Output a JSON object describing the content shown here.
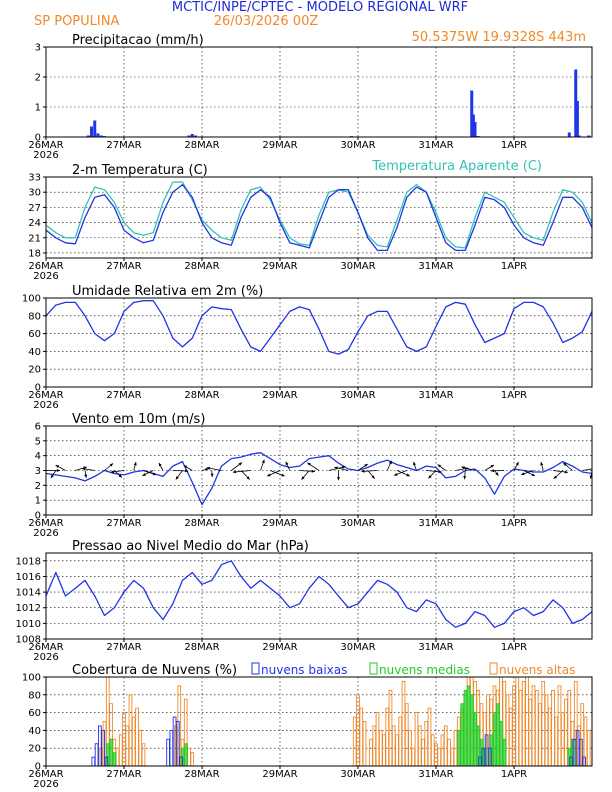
{
  "header": {
    "title": "MCTIC/INPE/CPTEC - MODELO REGIONAL WRF",
    "location": "SP POPULINA",
    "run": "26/03/2026 00Z",
    "coords": "50.5375W 19.9328S 443m"
  },
  "colors": {
    "title": "#1f2ad6",
    "orange": "#f0892a",
    "blue": "#1f35e6",
    "cyan": "#35c2b4",
    "green": "#22cc22",
    "black": "#000000"
  },
  "x_axis": {
    "hours_total": 168,
    "ticks": [
      {
        "h": 0,
        "label": "26MAR",
        "sub": "2026"
      },
      {
        "h": 24,
        "label": "27MAR"
      },
      {
        "h": 48,
        "label": "28MAR"
      },
      {
        "h": 72,
        "label": "29MAR"
      },
      {
        "h": 96,
        "label": "30MAR"
      },
      {
        "h": 120,
        "label": "31MAR"
      },
      {
        "h": 144,
        "label": "1APR"
      }
    ]
  },
  "chart_data": [
    {
      "type": "bar",
      "title": "Precipitacao (mm/h)",
      "ylim": [
        0,
        3
      ],
      "yticks": [
        0,
        1,
        2,
        3
      ],
      "series": [
        {
          "name": "Precipitacao",
          "x": [
            13,
            14,
            15,
            16,
            17,
            18,
            44,
            45,
            46,
            94,
            131,
            131.5,
            132,
            132.5,
            133,
            161,
            163,
            163.5,
            164,
            167
          ],
          "values": [
            0.05,
            0.35,
            0.55,
            0.12,
            0.05,
            0.03,
            0.05,
            0.1,
            0.05,
            0.03,
            1.55,
            0.75,
            0.5,
            0.03,
            0.03,
            0.15,
            2.25,
            1.2,
            0.05,
            0.05
          ]
        }
      ]
    },
    {
      "type": "line",
      "title": "2-m Temperatura (C)",
      "legend": "Temperatura Aparente (C)",
      "ylim": [
        17,
        33
      ],
      "yticks": [
        18,
        21,
        24,
        27,
        30,
        33
      ],
      "series": [
        {
          "name": "2-m Temperatura",
          "x": [
            0,
            3,
            6,
            9,
            12,
            15,
            18,
            21,
            24,
            27,
            30,
            33,
            36,
            39,
            42,
            45,
            48,
            51,
            54,
            57,
            60,
            63,
            66,
            69,
            72,
            75,
            78,
            81,
            84,
            87,
            90,
            93,
            96,
            99,
            102,
            105,
            108,
            111,
            114,
            117,
            120,
            123,
            126,
            129,
            132,
            135,
            138,
            141,
            144,
            147,
            150,
            153,
            156,
            159,
            162,
            165,
            168
          ],
          "values": [
            22.5,
            21.0,
            20.0,
            19.8,
            25.0,
            29.0,
            29.5,
            27.0,
            22.5,
            21.0,
            20.0,
            20.5,
            26.0,
            30.0,
            31.5,
            29.0,
            24.0,
            21.0,
            20.0,
            19.5,
            25.0,
            29.0,
            30.5,
            29.0,
            24.0,
            20.0,
            19.5,
            19.0,
            24.0,
            29.0,
            30.5,
            30.5,
            26.0,
            21.0,
            18.5,
            18.5,
            23.0,
            29.0,
            31.0,
            30.0,
            25.0,
            20.0,
            18.5,
            18.5,
            23.5,
            29.0,
            28.5,
            27.0,
            23.5,
            21.0,
            20.0,
            19.5,
            24.0,
            29.0,
            29.0,
            27.0,
            23.0
          ]
        },
        {
          "name": "Temperatura Aparente",
          "x": [
            0,
            3,
            6,
            9,
            12,
            15,
            18,
            21,
            24,
            27,
            30,
            33,
            36,
            39,
            42,
            45,
            48,
            51,
            54,
            57,
            60,
            63,
            66,
            69,
            72,
            75,
            78,
            81,
            84,
            87,
            90,
            93,
            96,
            99,
            102,
            105,
            108,
            111,
            114,
            117,
            120,
            123,
            126,
            129,
            132,
            135,
            138,
            141,
            144,
            147,
            150,
            153,
            156,
            159,
            162,
            165,
            168
          ],
          "values": [
            23.5,
            22.0,
            21.0,
            21.0,
            27.0,
            31.0,
            30.5,
            28.0,
            24.0,
            22.0,
            21.5,
            22.0,
            28.0,
            32.0,
            32.0,
            28.5,
            24.5,
            22.5,
            21.0,
            20.5,
            26.5,
            30.5,
            31.0,
            28.5,
            24.5,
            21.0,
            19.8,
            19.5,
            25.5,
            30.0,
            30.5,
            30.0,
            26.0,
            21.5,
            19.5,
            19.2,
            24.5,
            30.0,
            31.5,
            30.0,
            26.0,
            21.0,
            19.2,
            19.0,
            25.0,
            30.0,
            29.0,
            28.0,
            25.0,
            22.0,
            21.0,
            20.5,
            26.0,
            30.5,
            30.0,
            28.0,
            24.0
          ]
        }
      ]
    },
    {
      "type": "line",
      "title": "Umidade Relativa em 2m (%)",
      "ylim": [
        0,
        100
      ],
      "yticks": [
        0,
        20,
        40,
        60,
        80,
        100
      ],
      "series": [
        {
          "name": "Umidade Relativa",
          "x": [
            0,
            3,
            6,
            9,
            12,
            15,
            18,
            21,
            24,
            27,
            30,
            33,
            36,
            39,
            42,
            45,
            48,
            51,
            54,
            57,
            60,
            63,
            66,
            69,
            72,
            75,
            78,
            81,
            84,
            87,
            90,
            93,
            96,
            99,
            102,
            105,
            108,
            111,
            114,
            117,
            120,
            123,
            126,
            129,
            132,
            135,
            138,
            141,
            144,
            147,
            150,
            153,
            156,
            159,
            162,
            165,
            168
          ],
          "values": [
            80,
            92,
            95,
            95,
            80,
            60,
            52,
            60,
            85,
            95,
            97,
            97,
            80,
            55,
            45,
            55,
            80,
            90,
            88,
            87,
            65,
            45,
            40,
            55,
            70,
            85,
            90,
            87,
            65,
            40,
            37,
            42,
            62,
            80,
            85,
            85,
            65,
            45,
            40,
            45,
            68,
            90,
            95,
            93,
            70,
            50,
            55,
            60,
            88,
            95,
            95,
            90,
            72,
            50,
            55,
            62,
            85
          ]
        }
      ]
    },
    {
      "type": "line",
      "title": "Vento em 10m (m/s)",
      "ylim": [
        0,
        6
      ],
      "yticks": [
        0,
        1,
        2,
        3,
        4,
        5,
        6
      ],
      "series": [
        {
          "name": "Vento",
          "x": [
            0,
            3,
            6,
            9,
            12,
            15,
            18,
            21,
            24,
            27,
            30,
            33,
            36,
            39,
            42,
            45,
            48,
            51,
            54,
            57,
            60,
            63,
            66,
            69,
            72,
            75,
            78,
            81,
            84,
            87,
            90,
            93,
            96,
            99,
            102,
            105,
            108,
            111,
            114,
            117,
            120,
            123,
            126,
            129,
            132,
            135,
            138,
            141,
            144,
            147,
            150,
            153,
            156,
            159,
            162,
            165,
            168
          ],
          "values": [
            2.8,
            2.7,
            2.6,
            2.5,
            2.3,
            2.6,
            3.0,
            2.8,
            2.7,
            2.9,
            3.0,
            2.8,
            2.6,
            3.3,
            3.6,
            2.2,
            0.7,
            1.8,
            3.3,
            3.8,
            3.9,
            4.1,
            4.2,
            3.8,
            3.4,
            3.2,
            3.3,
            3.8,
            3.9,
            4.0,
            3.5,
            3.1,
            3.0,
            3.2,
            3.5,
            3.7,
            3.4,
            3.2,
            3.0,
            3.3,
            3.2,
            2.5,
            2.6,
            3.0,
            3.1,
            2.5,
            1.4,
            2.6,
            3.1,
            3.0,
            2.9,
            2.9,
            3.2,
            3.6,
            3.3,
            2.9,
            2.8
          ]
        }
      ]
    },
    {
      "type": "line",
      "title": "Pressao ao Nivel Medio do Mar (hPa)",
      "ylim": [
        1008,
        1019
      ],
      "yticks": [
        1008,
        1010,
        1012,
        1014,
        1016,
        1018
      ],
      "series": [
        {
          "name": "Pressao",
          "x": [
            0,
            3,
            6,
            9,
            12,
            15,
            18,
            21,
            24,
            27,
            30,
            33,
            36,
            39,
            42,
            45,
            48,
            51,
            54,
            57,
            60,
            63,
            66,
            69,
            72,
            75,
            78,
            81,
            84,
            87,
            90,
            93,
            96,
            99,
            102,
            105,
            108,
            111,
            114,
            117,
            120,
            123,
            126,
            129,
            132,
            135,
            138,
            141,
            144,
            147,
            150,
            153,
            156,
            159,
            162,
            165,
            168
          ],
          "values": [
            1013.5,
            1016.5,
            1013.5,
            1014.5,
            1015.5,
            1013.5,
            1011.0,
            1012.0,
            1014.0,
            1015.5,
            1014.5,
            1012.0,
            1010.5,
            1012.5,
            1015.5,
            1016.5,
            1015.0,
            1015.5,
            1017.5,
            1018.0,
            1016.0,
            1014.5,
            1015.5,
            1014.5,
            1013.5,
            1012.0,
            1012.5,
            1014.5,
            1016.0,
            1015.0,
            1013.5,
            1012.0,
            1012.5,
            1014.0,
            1015.5,
            1015.0,
            1014.0,
            1012.0,
            1011.5,
            1013.0,
            1012.5,
            1010.5,
            1009.5,
            1010.0,
            1011.5,
            1011.0,
            1009.5,
            1010.0,
            1011.5,
            1012.0,
            1011.0,
            1011.5,
            1013.0,
            1012.0,
            1010.0,
            1010.5,
            1011.5
          ]
        }
      ]
    },
    {
      "type": "bar",
      "title": "Cobertura de Nuvens (%)",
      "ylim": [
        0,
        100
      ],
      "yticks": [
        0,
        20,
        40,
        60,
        80,
        100
      ],
      "legend": [
        "nuvens baixas",
        "nuvens medias",
        "nuvens altas"
      ],
      "series": [
        {
          "name": "nuvens baixas",
          "x": [
            15,
            16,
            17,
            18,
            19,
            38,
            39,
            40,
            41,
            42,
            134,
            135,
            136,
            137,
            162,
            163,
            164,
            165,
            166
          ],
          "values": [
            10,
            25,
            45,
            40,
            10,
            30,
            40,
            55,
            50,
            10,
            10,
            20,
            35,
            20,
            10,
            30,
            40,
            30,
            10
          ]
        },
        {
          "name": "nuvens medias",
          "x": [
            19,
            20,
            21,
            42,
            43,
            127,
            128,
            129,
            130,
            131,
            132,
            133,
            134,
            135,
            137,
            138,
            139,
            140,
            141,
            161,
            162
          ],
          "values": [
            25,
            30,
            15,
            20,
            25,
            40,
            70,
            85,
            90,
            80,
            60,
            45,
            30,
            20,
            35,
            60,
            70,
            50,
            30,
            20,
            30
          ]
        },
        {
          "name": "nuvens altas",
          "x": [
            17,
            18,
            19,
            20,
            21,
            22,
            23,
            24,
            25,
            26,
            27,
            28,
            29,
            30,
            40,
            41,
            42,
            43,
            44,
            45,
            95,
            96,
            97,
            98,
            100,
            101,
            102,
            103,
            104,
            105,
            106,
            107,
            108,
            109,
            110,
            111,
            112,
            113,
            114,
            115,
            116,
            117,
            118,
            119,
            120,
            121,
            122,
            123,
            124,
            125,
            126,
            127,
            128,
            129,
            130,
            131,
            132,
            133,
            134,
            135,
            136,
            137,
            138,
            139,
            140,
            141,
            142,
            143,
            144,
            145,
            146,
            147,
            148,
            149,
            150,
            151,
            152,
            153,
            154,
            155,
            156,
            157,
            158,
            159,
            160,
            161,
            162,
            163,
            164,
            165,
            166,
            167
          ],
          "values": [
            20,
            50,
            100,
            70,
            30,
            20,
            35,
            60,
            45,
            80,
            55,
            65,
            40,
            25,
            45,
            90,
            30,
            75,
            20,
            15,
            55,
            80,
            65,
            50,
            30,
            45,
            60,
            40,
            35,
            65,
            85,
            45,
            35,
            55,
            95,
            70,
            40,
            20,
            60,
            45,
            30,
            50,
            65,
            35,
            25,
            20,
            35,
            45,
            30,
            20,
            40,
            55,
            65,
            80,
            100,
            100,
            95,
            85,
            70,
            60,
            80,
            75,
            90,
            85,
            100,
            95,
            80,
            65,
            90,
            100,
            85,
            95,
            100,
            75,
            90,
            85,
            70,
            95,
            80,
            65,
            85,
            55,
            90,
            60,
            75,
            85,
            50,
            95,
            45,
            70,
            55,
            40
          ]
        }
      ]
    }
  ]
}
